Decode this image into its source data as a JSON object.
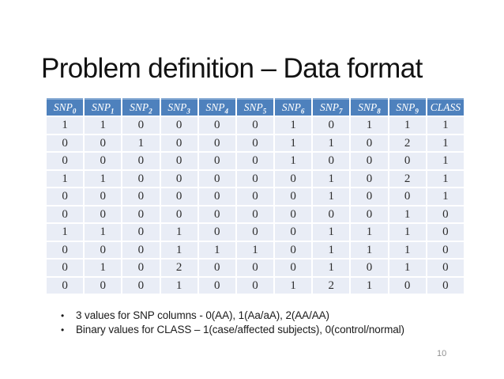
{
  "slide": {
    "title": "Problem definition – Data format",
    "page_number": "10"
  },
  "table": {
    "columns": [
      {
        "label": "SNP",
        "sub": "0"
      },
      {
        "label": "SNP",
        "sub": "1"
      },
      {
        "label": "SNP",
        "sub": "2"
      },
      {
        "label": "SNP",
        "sub": "3"
      },
      {
        "label": "SNP",
        "sub": "4"
      },
      {
        "label": "SNP",
        "sub": "5"
      },
      {
        "label": "SNP",
        "sub": "6"
      },
      {
        "label": "SNP",
        "sub": "7"
      },
      {
        "label": "SNP",
        "sub": "8"
      },
      {
        "label": "SNP",
        "sub": "9"
      },
      {
        "label": "CLASS",
        "sub": ""
      }
    ],
    "rows": [
      [
        "1",
        "1",
        "0",
        "0",
        "0",
        "0",
        "1",
        "0",
        "1",
        "1",
        "1"
      ],
      [
        "0",
        "0",
        "1",
        "0",
        "0",
        "0",
        "1",
        "1",
        "0",
        "2",
        "1"
      ],
      [
        "0",
        "0",
        "0",
        "0",
        "0",
        "0",
        "1",
        "0",
        "0",
        "0",
        "1"
      ],
      [
        "1",
        "1",
        "0",
        "0",
        "0",
        "0",
        "0",
        "1",
        "0",
        "2",
        "1"
      ],
      [
        "0",
        "0",
        "0",
        "0",
        "0",
        "0",
        "0",
        "1",
        "0",
        "0",
        "1"
      ],
      [
        "0",
        "0",
        "0",
        "0",
        "0",
        "0",
        "0",
        "0",
        "0",
        "1",
        "0"
      ],
      [
        "1",
        "1",
        "0",
        "1",
        "0",
        "0",
        "0",
        "1",
        "1",
        "1",
        "0"
      ],
      [
        "0",
        "0",
        "0",
        "1",
        "1",
        "1",
        "0",
        "1",
        "1",
        "1",
        "0"
      ],
      [
        "0",
        "1",
        "0",
        "2",
        "0",
        "0",
        "0",
        "1",
        "0",
        "1",
        "0"
      ],
      [
        "0",
        "0",
        "0",
        "1",
        "0",
        "0",
        "1",
        "2",
        "1",
        "0",
        "0"
      ]
    ]
  },
  "notes": {
    "items": [
      "3 values for SNP columns - 0(AA), 1(Aa/aA), 2(AA/AA)",
      "Binary values for CLASS – 1(case/affected subjects), 0(control/normal)"
    ]
  },
  "appearance": {
    "header_bg": "#4e81bd",
    "header_top_border": "#87aad3",
    "header_text": "#ffffff",
    "row_bg": "#e9edf6",
    "grid_color": "#ffffff",
    "cell_text": "#2d2d2d",
    "title_text": "#121212",
    "page_number_text": "#919191",
    "background": "#ffffff"
  }
}
